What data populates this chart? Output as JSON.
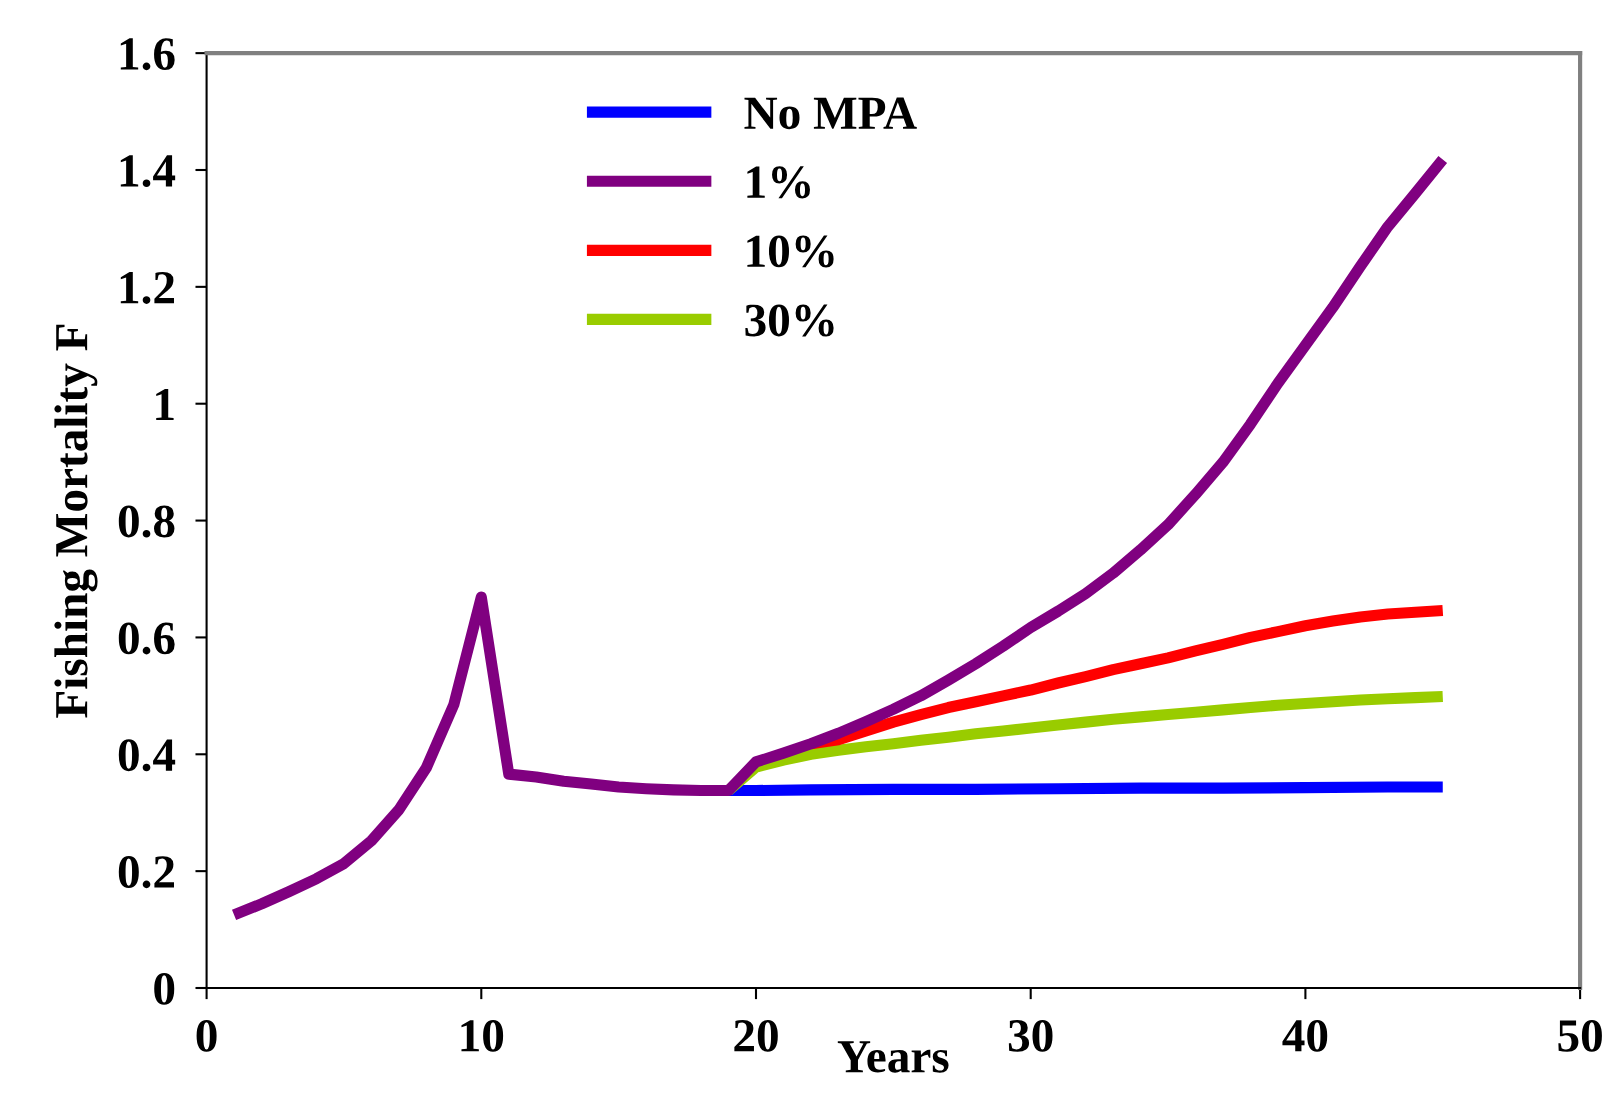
{
  "chart_data": {
    "type": "line",
    "xlabel": "Years",
    "ylabel": "Fishing Mortality F",
    "xlim": [
      0,
      50
    ],
    "xticks": [
      0,
      10,
      20,
      30,
      40,
      50
    ],
    "ylim": [
      0,
      1.6
    ],
    "yticks": [
      0,
      0.2,
      0.4,
      0.6,
      0.8,
      1,
      1.2,
      1.4,
      1.6
    ],
    "grid": false,
    "legend": "top",
    "marker": "none",
    "line_style": "solid",
    "series": [
      {
        "name": "No MPA",
        "color": "#0000ff",
        "x": [
          19,
          20,
          22,
          25,
          28,
          31,
          34,
          37,
          40,
          43,
          45
        ],
        "values": [
          0.338,
          0.338,
          0.339,
          0.34,
          0.34,
          0.341,
          0.342,
          0.342,
          0.343,
          0.344,
          0.344
        ]
      },
      {
        "name": "1%",
        "color": "#800080",
        "x": [
          1,
          2,
          3,
          4,
          5,
          6,
          7,
          8,
          9,
          10,
          11,
          12,
          13,
          14,
          15,
          16,
          17,
          18,
          19,
          20,
          21,
          22,
          23,
          24,
          25,
          26,
          27,
          28,
          29,
          30,
          31,
          32,
          33,
          34,
          35,
          36,
          37,
          38,
          39,
          40,
          41,
          42,
          43,
          44,
          45
        ],
        "values": [
          0.125,
          0.144,
          0.165,
          0.187,
          0.213,
          0.252,
          0.305,
          0.377,
          0.485,
          0.669,
          0.366,
          0.361,
          0.354,
          0.349,
          0.344,
          0.341,
          0.339,
          0.338,
          0.338,
          0.387,
          0.402,
          0.418,
          0.436,
          0.456,
          0.477,
          0.5,
          0.527,
          0.555,
          0.585,
          0.617,
          0.645,
          0.675,
          0.71,
          0.75,
          0.793,
          0.845,
          0.9,
          0.965,
          1.035,
          1.1,
          1.165,
          1.235,
          1.303,
          1.36,
          1.418
        ]
      },
      {
        "name": "10%",
        "color": "#ff0000",
        "x": [
          22,
          23,
          24,
          25,
          26,
          27,
          28,
          29,
          30,
          31,
          32,
          33,
          34,
          35,
          36,
          37,
          38,
          39,
          40,
          41,
          42,
          43,
          44,
          45
        ],
        "values": [
          0.418,
          0.425,
          0.44,
          0.455,
          0.468,
          0.48,
          0.49,
          0.5,
          0.51,
          0.522,
          0.533,
          0.545,
          0.555,
          0.565,
          0.577,
          0.588,
          0.6,
          0.61,
          0.62,
          0.628,
          0.635,
          0.64,
          0.643,
          0.646
        ]
      },
      {
        "name": "30%",
        "color": "#99cc00",
        "x": [
          19,
          20,
          21,
          22,
          23,
          24,
          25,
          26,
          27,
          28,
          29,
          30,
          31,
          32,
          33,
          34,
          35,
          36,
          37,
          38,
          39,
          40,
          41,
          42,
          43,
          44,
          45
        ],
        "values": [
          0.338,
          0.378,
          0.39,
          0.4,
          0.407,
          0.413,
          0.418,
          0.424,
          0.429,
          0.435,
          0.44,
          0.445,
          0.45,
          0.455,
          0.46,
          0.464,
          0.468,
          0.472,
          0.476,
          0.48,
          0.484,
          0.487,
          0.49,
          0.493,
          0.495,
          0.497,
          0.499
        ]
      }
    ]
  }
}
